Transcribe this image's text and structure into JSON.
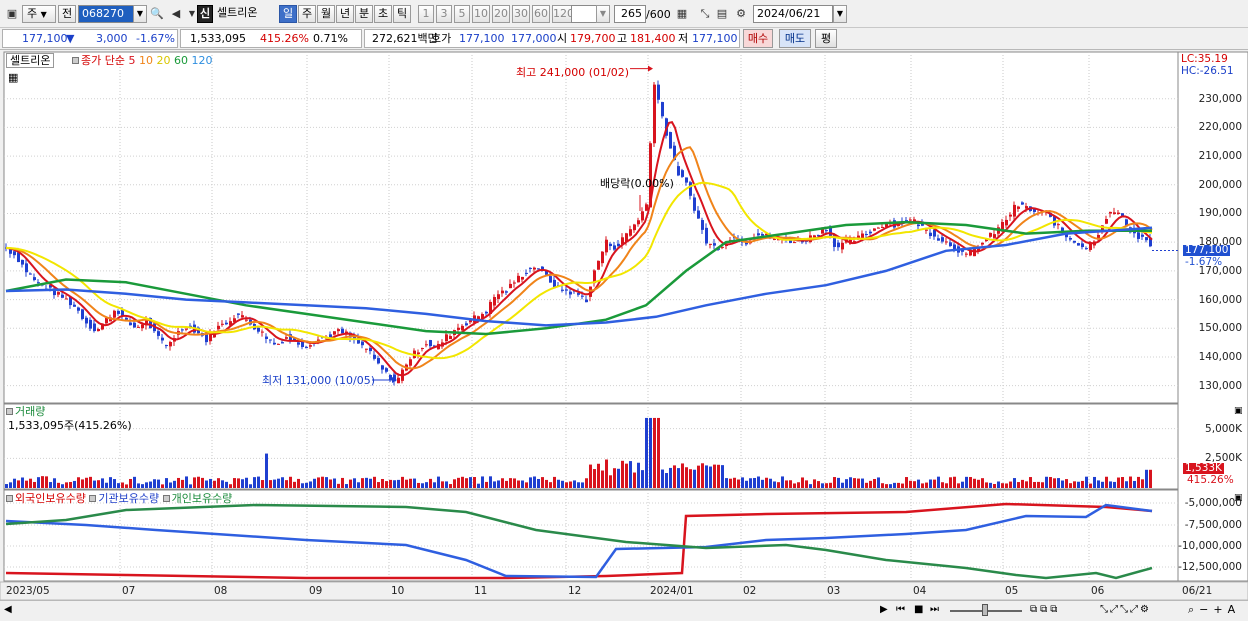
{
  "toolbar": {
    "market": "주",
    "prev": "전",
    "code": "068270",
    "credit_badge": "신",
    "stock_name": "셀트리온",
    "periods": [
      "일",
      "주",
      "월",
      "년",
      "분",
      "초",
      "틱"
    ],
    "active_period": "일",
    "intervals": [
      "1",
      "3",
      "5",
      "10",
      "20",
      "30",
      "60",
      "120"
    ],
    "count": "265",
    "count_total": "/600",
    "date": "2024/06/21"
  },
  "quote": {
    "price": "177,100",
    "change_arrow": "▼",
    "change": "3,000",
    "change_pct": "-1.67%",
    "volume": "1,533,095",
    "volume_ratio": "415.26%",
    "turnover_pct": "0.71%",
    "amount": "272,621백만",
    "hoga_label": "호가",
    "ask": "177,100",
    "bid": "177,000",
    "open_label": "시",
    "open": "179,700",
    "high_label": "고",
    "high": "181,400",
    "low_label": "저",
    "low": "177,100",
    "buy": "매수",
    "sell": "매도",
    "eval": "평"
  },
  "price_pane": {
    "name_box": "셀트리온",
    "legend_prefix": "종가 단순",
    "ma_labels": [
      "5",
      "10",
      "20",
      "60",
      "120"
    ],
    "ma_colors": [
      "#d8141e",
      "#f0841a",
      "#f2e600",
      "#1a9a3a",
      "#2f5fe0"
    ],
    "lc": "LC:35.19",
    "hc": "HC:-26.51",
    "max_label": "최고 241,000 (01/02)",
    "min_label": "최저 131,000 (10/05)",
    "dividend_label": "배당락(0.00%)",
    "last_price": "177,100",
    "last_pct": "-1.67%"
  },
  "volume_pane": {
    "title": "거래량",
    "value": "1,533,095주(415.26%)",
    "last_badge": "1,533K",
    "last_pct": "415.26%"
  },
  "holding_pane": {
    "titles": [
      "외국인보유수량",
      "기관보유수량",
      "개인보유수량"
    ],
    "colors": [
      "#d8141e",
      "#2f5fe0",
      "#2a8a4a"
    ]
  },
  "chart_data": {
    "type": "line",
    "description_units": "daily candlestick chart with moving averages; price in KRW",
    "x_ticks": [
      "2023/05",
      "07",
      "08",
      "09",
      "10",
      "11",
      "12",
      "2024/01",
      "02",
      "03",
      "04",
      "05",
      "06",
      "06/21"
    ],
    "price_axis": {
      "ticks": [
        "230,000",
        "220,000",
        "210,000",
        "200,000",
        "190,000",
        "180,000",
        "170,000",
        "160,000",
        "150,000",
        "140,000",
        "130,000"
      ],
      "ylim": [
        125000,
        240000
      ]
    },
    "close_series": [
      [
        0,
        178000
      ],
      [
        10,
        175000
      ],
      [
        20,
        170000
      ],
      [
        30,
        166000
      ],
      [
        40,
        164000
      ],
      [
        50,
        162000
      ],
      [
        60,
        160000
      ],
      [
        70,
        157000
      ],
      [
        80,
        152000
      ],
      [
        90,
        149000
      ],
      [
        100,
        153000
      ],
      [
        110,
        157000
      ],
      [
        120,
        152000
      ],
      [
        130,
        150000
      ],
      [
        140,
        153000
      ],
      [
        150,
        147000
      ],
      [
        160,
        144000
      ],
      [
        170,
        148000
      ],
      [
        180,
        151000
      ],
      [
        190,
        149000
      ],
      [
        200,
        146000
      ],
      [
        210,
        150000
      ],
      [
        220,
        152000
      ],
      [
        230,
        155000
      ],
      [
        240,
        153000
      ],
      [
        250,
        150000
      ],
      [
        260,
        147000
      ],
      [
        270,
        144000
      ],
      [
        280,
        147000
      ],
      [
        290,
        145000
      ],
      [
        300,
        144000
      ],
      [
        310,
        146000
      ],
      [
        320,
        147000
      ],
      [
        330,
        149000
      ],
      [
        340,
        148000
      ],
      [
        350,
        145000
      ],
      [
        360,
        143000
      ],
      [
        370,
        138000
      ],
      [
        380,
        134000
      ],
      [
        390,
        131000
      ],
      [
        400,
        138000
      ],
      [
        410,
        142000
      ],
      [
        420,
        145000
      ],
      [
        430,
        143000
      ],
      [
        440,
        147000
      ],
      [
        450,
        150000
      ],
      [
        460,
        152000
      ],
      [
        470,
        154000
      ],
      [
        480,
        156000
      ],
      [
        490,
        162000
      ],
      [
        500,
        163000
      ],
      [
        510,
        167000
      ],
      [
        520,
        170000
      ],
      [
        530,
        172000
      ],
      [
        540,
        168000
      ],
      [
        550,
        164000
      ],
      [
        560,
        163000
      ],
      [
        570,
        162000
      ],
      [
        580,
        160000
      ],
      [
        590,
        172000
      ],
      [
        600,
        180000
      ],
      [
        610,
        178000
      ],
      [
        620,
        183000
      ],
      [
        630,
        187000
      ],
      [
        640,
        193000
      ],
      [
        648,
        236000
      ],
      [
        655,
        225000
      ],
      [
        660,
        218000
      ],
      [
        670,
        205000
      ],
      [
        680,
        200000
      ],
      [
        690,
        190000
      ],
      [
        700,
        180000
      ],
      [
        710,
        178000
      ],
      [
        720,
        180000
      ],
      [
        730,
        182000
      ],
      [
        740,
        180000
      ],
      [
        750,
        183000
      ],
      [
        760,
        182000
      ],
      [
        770,
        181000
      ],
      [
        780,
        181000
      ],
      [
        790,
        180000
      ],
      [
        800,
        181000
      ],
      [
        810,
        183000
      ],
      [
        820,
        185000
      ],
      [
        830,
        178000
      ],
      [
        840,
        180000
      ],
      [
        850,
        181000
      ],
      [
        860,
        183000
      ],
      [
        870,
        185000
      ],
      [
        880,
        187000
      ],
      [
        890,
        186000
      ],
      [
        900,
        188000
      ],
      [
        910,
        187000
      ],
      [
        920,
        184000
      ],
      [
        930,
        182000
      ],
      [
        940,
        180000
      ],
      [
        950,
        178000
      ],
      [
        960,
        175000
      ],
      [
        970,
        178000
      ],
      [
        980,
        181000
      ],
      [
        990,
        184000
      ],
      [
        1000,
        188000
      ],
      [
        1010,
        193000
      ],
      [
        1020,
        192000
      ],
      [
        1030,
        190000
      ],
      [
        1040,
        190000
      ],
      [
        1050,
        186000
      ],
      [
        1060,
        182000
      ],
      [
        1070,
        180000
      ],
      [
        1080,
        178000
      ],
      [
        1090,
        182000
      ],
      [
        1100,
        189000
      ],
      [
        1110,
        191000
      ],
      [
        1120,
        186000
      ],
      [
        1130,
        182000
      ],
      [
        1140,
        181000
      ],
      [
        1146,
        177100
      ]
    ],
    "ma120": [
      [
        0,
        163000
      ],
      [
        60,
        163500
      ],
      [
        120,
        162000
      ],
      [
        180,
        160000
      ],
      [
        240,
        159000
      ],
      [
        300,
        158000
      ],
      [
        360,
        157000
      ],
      [
        420,
        155000
      ],
      [
        480,
        152500
      ],
      [
        540,
        151000
      ],
      [
        600,
        152000
      ],
      [
        650,
        154000
      ],
      [
        700,
        158000
      ],
      [
        760,
        162000
      ],
      [
        820,
        165000
      ],
      [
        880,
        170000
      ],
      [
        940,
        177000
      ],
      [
        1000,
        179000
      ],
      [
        1060,
        183000
      ],
      [
        1146,
        185000
      ]
    ],
    "ma60": [
      [
        0,
        163000
      ],
      [
        60,
        167000
      ],
      [
        120,
        166000
      ],
      [
        180,
        162000
      ],
      [
        240,
        158000
      ],
      [
        300,
        155000
      ],
      [
        360,
        152000
      ],
      [
        420,
        149000
      ],
      [
        480,
        148000
      ],
      [
        540,
        150000
      ],
      [
        600,
        153000
      ],
      [
        640,
        158000
      ],
      [
        680,
        170000
      ],
      [
        720,
        180000
      ],
      [
        780,
        183000
      ],
      [
        840,
        186000
      ],
      [
        900,
        187000
      ],
      [
        960,
        186000
      ],
      [
        1020,
        183000
      ],
      [
        1080,
        184000
      ],
      [
        1146,
        184000
      ]
    ],
    "volume_axis": {
      "ticks": [
        "5,000K",
        "2,500K"
      ],
      "ylim": [
        0,
        6400
      ]
    },
    "holding_axis": {
      "ticks": [
        "-5,000,000",
        "-7,500,000",
        "-10,000,000",
        "-12,500,000"
      ]
    }
  }
}
